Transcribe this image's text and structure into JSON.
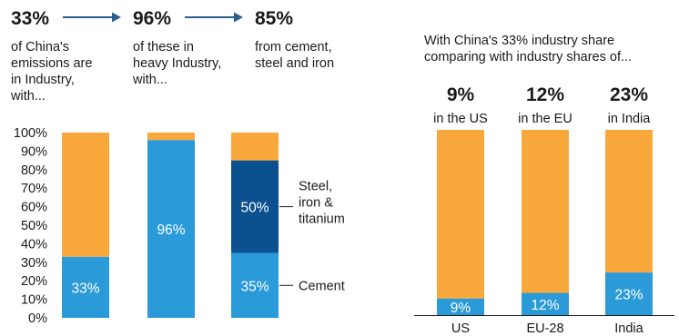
{
  "colors": {
    "orange": "#F9A93B",
    "blue": "#2B9AD8",
    "dark_blue": "#0B508F",
    "text": "#1a1a1a"
  },
  "flow": [
    {
      "big": "33%",
      "lines": [
        "of China's",
        "emissions are",
        "in Industry,",
        "with..."
      ]
    },
    {
      "big": "96%",
      "lines": [
        "of these in",
        "heavy Industry,",
        "with..."
      ]
    },
    {
      "big": "85%",
      "lines": [
        "from cement,",
        "steel and iron"
      ]
    }
  ],
  "right_intro": [
    "With China's 33% industry share",
    "comparing with industry shares of..."
  ],
  "right_headers": [
    {
      "big": "9%",
      "sub": "in the US"
    },
    {
      "big": "12%",
      "sub": "in the EU"
    },
    {
      "big": "23%",
      "sub": "in India"
    }
  ],
  "annotations": {
    "steel": [
      "Steel,",
      "iron &",
      "titanium"
    ],
    "cement": "Cement"
  },
  "chart_data": [
    {
      "type": "bar",
      "stacked": true,
      "ylim": [
        0,
        100
      ],
      "yticks": [
        "0%",
        "10%",
        "20%",
        "30%",
        "40%",
        "50%",
        "60%",
        "70%",
        "80%",
        "90%",
        "100%"
      ],
      "grid": false,
      "bars": [
        {
          "segments": [
            {
              "value": 33,
              "label": "33%",
              "color": "#2B9AD8"
            },
            {
              "value": 67,
              "label": "",
              "color": "#F9A93B"
            }
          ]
        },
        {
          "segments": [
            {
              "value": 96,
              "label": "96%",
              "color": "#2B9AD8"
            },
            {
              "value": 4,
              "label": "",
              "color": "#F9A93B"
            }
          ]
        },
        {
          "segments": [
            {
              "value": 35,
              "label": "35%",
              "color": "#2B9AD8"
            },
            {
              "value": 50,
              "label": "50%",
              "color": "#0B508F"
            },
            {
              "value": 15,
              "label": "",
              "color": "#F9A93B"
            }
          ]
        }
      ]
    },
    {
      "type": "bar",
      "stacked": true,
      "ylim": [
        0,
        100
      ],
      "categories": [
        "US",
        "EU-28",
        "India"
      ],
      "grid": false,
      "bars": [
        {
          "segments": [
            {
              "value": 9,
              "label": "9%",
              "color": "#2B9AD8"
            },
            {
              "value": 91,
              "label": "",
              "color": "#F9A93B"
            }
          ]
        },
        {
          "segments": [
            {
              "value": 12,
              "label": "12%",
              "color": "#2B9AD8"
            },
            {
              "value": 88,
              "label": "",
              "color": "#F9A93B"
            }
          ]
        },
        {
          "segments": [
            {
              "value": 23,
              "label": "23%",
              "color": "#2B9AD8"
            },
            {
              "value": 77,
              "label": "",
              "color": "#F9A93B"
            }
          ]
        }
      ]
    }
  ]
}
